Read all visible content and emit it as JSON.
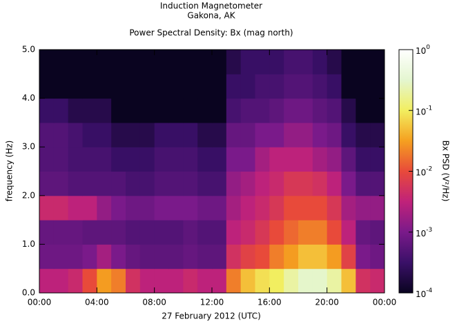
{
  "chart_data": {
    "type": "spectrogram",
    "title": "Induction Magnetometer",
    "subtitle": "Gakona, AK",
    "plot_title": "Power Spectral Density: Bx (mag north)",
    "x_label": "27 February 2012 (UTC)",
    "y_label": "frequency (Hz)",
    "colorbar_label": "Bx PSD (V²/Hz)",
    "xlim": [
      0,
      24
    ],
    "xticks": [
      {
        "value": 0,
        "label": "00:00"
      },
      {
        "value": 4,
        "label": "04:00"
      },
      {
        "value": 8,
        "label": "08:00"
      },
      {
        "value": 12,
        "label": "12:00"
      },
      {
        "value": 16,
        "label": "16:00"
      },
      {
        "value": 20,
        "label": "20:00"
      },
      {
        "value": 24,
        "label": "00:00"
      }
    ],
    "ylim": [
      0,
      5
    ],
    "yticks": [
      {
        "value": 0,
        "label": "0.0"
      },
      {
        "value": 1,
        "label": "1.0"
      },
      {
        "value": 2,
        "label": "2.0"
      },
      {
        "value": 3,
        "label": "3.0"
      },
      {
        "value": 4,
        "label": "4.0"
      },
      {
        "value": 5,
        "label": "5.0"
      }
    ],
    "zlim": [
      0.0001,
      1
    ],
    "zscale": "log",
    "zticks": [
      {
        "value": 0.0001,
        "label": "10",
        "exponent": "-4"
      },
      {
        "value": 0.001,
        "label": "10",
        "exponent": "-3"
      },
      {
        "value": 0.01,
        "label": "10",
        "exponent": "-2"
      },
      {
        "value": 0.1,
        "label": "10",
        "exponent": "-1"
      },
      {
        "value": 1,
        "label": "10",
        "exponent": "0"
      }
    ],
    "colormap": [
      "#0a0420",
      "#3a1068",
      "#7a1a8a",
      "#c0227a",
      "#e84a3a",
      "#f5a020",
      "#f2ee60",
      "#e4f6d0",
      "#ffffff"
    ],
    "xbins": [
      0,
      1,
      2,
      3,
      4,
      5,
      6,
      7,
      8,
      9,
      10,
      11,
      12,
      13,
      14,
      15,
      16,
      17,
      18,
      19,
      20,
      21,
      22,
      23,
      24
    ],
    "ybins": [
      0,
      0.5,
      1,
      1.5,
      2,
      2.5,
      3,
      3.5,
      4,
      4.5,
      5
    ],
    "z": [
      [
        0.003,
        0.003,
        0.004,
        0.01,
        0.03,
        0.02,
        0.005,
        0.003,
        0.003,
        0.003,
        0.004,
        0.003,
        0.003,
        0.02,
        0.05,
        0.08,
        0.1,
        0.2,
        0.3,
        0.3,
        0.2,
        0.05,
        0.005,
        0.004
      ],
      [
        0.0008,
        0.0008,
        0.0008,
        0.001,
        0.002,
        0.001,
        0.0007,
        0.0006,
        0.0006,
        0.0006,
        0.0007,
        0.0006,
        0.0006,
        0.005,
        0.008,
        0.01,
        0.02,
        0.03,
        0.05,
        0.05,
        0.03,
        0.008,
        0.001,
        0.0008
      ],
      [
        0.0007,
        0.0007,
        0.0007,
        0.0006,
        0.0006,
        0.0006,
        0.0005,
        0.0005,
        0.0005,
        0.0005,
        0.0006,
        0.0005,
        0.0005,
        0.003,
        0.004,
        0.006,
        0.01,
        0.015,
        0.02,
        0.02,
        0.01,
        0.003,
        0.0007,
        0.0006
      ],
      [
        0.004,
        0.004,
        0.003,
        0.003,
        0.0015,
        0.001,
        0.0008,
        0.0008,
        0.001,
        0.001,
        0.001,
        0.0008,
        0.0008,
        0.002,
        0.003,
        0.004,
        0.006,
        0.01,
        0.01,
        0.01,
        0.006,
        0.002,
        0.0015,
        0.0015
      ],
      [
        0.0006,
        0.0006,
        0.0005,
        0.0005,
        0.0005,
        0.0005,
        0.0004,
        0.0004,
        0.0005,
        0.0005,
        0.0005,
        0.0004,
        0.0004,
        0.0015,
        0.002,
        0.003,
        0.004,
        0.006,
        0.006,
        0.005,
        0.003,
        0.001,
        0.0005,
        0.0005
      ],
      [
        0.0005,
        0.0005,
        0.0004,
        0.0004,
        0.0004,
        0.0003,
        0.0003,
        0.0003,
        0.0004,
        0.0004,
        0.0004,
        0.0003,
        0.0003,
        0.001,
        0.001,
        0.002,
        0.003,
        0.003,
        0.003,
        0.002,
        0.0015,
        0.0006,
        0.0003,
        0.0003
      ],
      [
        0.0005,
        0.0005,
        0.0004,
        0.0003,
        0.0003,
        0.0002,
        0.0002,
        0.0002,
        0.0003,
        0.0003,
        0.0003,
        0.0002,
        0.0002,
        0.0007,
        0.0007,
        0.001,
        0.001,
        0.0015,
        0.0015,
        0.001,
        0.0008,
        0.0003,
        0.0002,
        0.0002
      ],
      [
        0.0003,
        0.0003,
        0.0002,
        0.0002,
        0.0002,
        0.0001,
        0.0001,
        0.0001,
        0.0001,
        0.0001,
        0.0001,
        0.0001,
        0.0001,
        0.0004,
        0.0005,
        0.0005,
        0.0006,
        0.0008,
        0.0008,
        0.0006,
        0.0005,
        0.0002,
        0.0001,
        0.0001
      ],
      [
        0.0001,
        0.0001,
        0.0001,
        0.0001,
        0.0001,
        0.0001,
        0.0001,
        0.0001,
        0.0001,
        0.0001,
        0.0001,
        0.0001,
        0.0001,
        0.0003,
        0.0003,
        0.0004,
        0.0004,
        0.0005,
        0.0005,
        0.0004,
        0.0003,
        0.0001,
        0.0001,
        0.0001
      ],
      [
        0.0001,
        0.0001,
        0.0001,
        0.0001,
        0.0001,
        0.0001,
        0.0001,
        0.0001,
        0.0001,
        0.0001,
        0.0001,
        0.0001,
        0.0001,
        0.0002,
        0.0003,
        0.0003,
        0.0003,
        0.0004,
        0.0004,
        0.0003,
        0.0002,
        0.0001,
        0.0001,
        0.0001
      ]
    ]
  }
}
